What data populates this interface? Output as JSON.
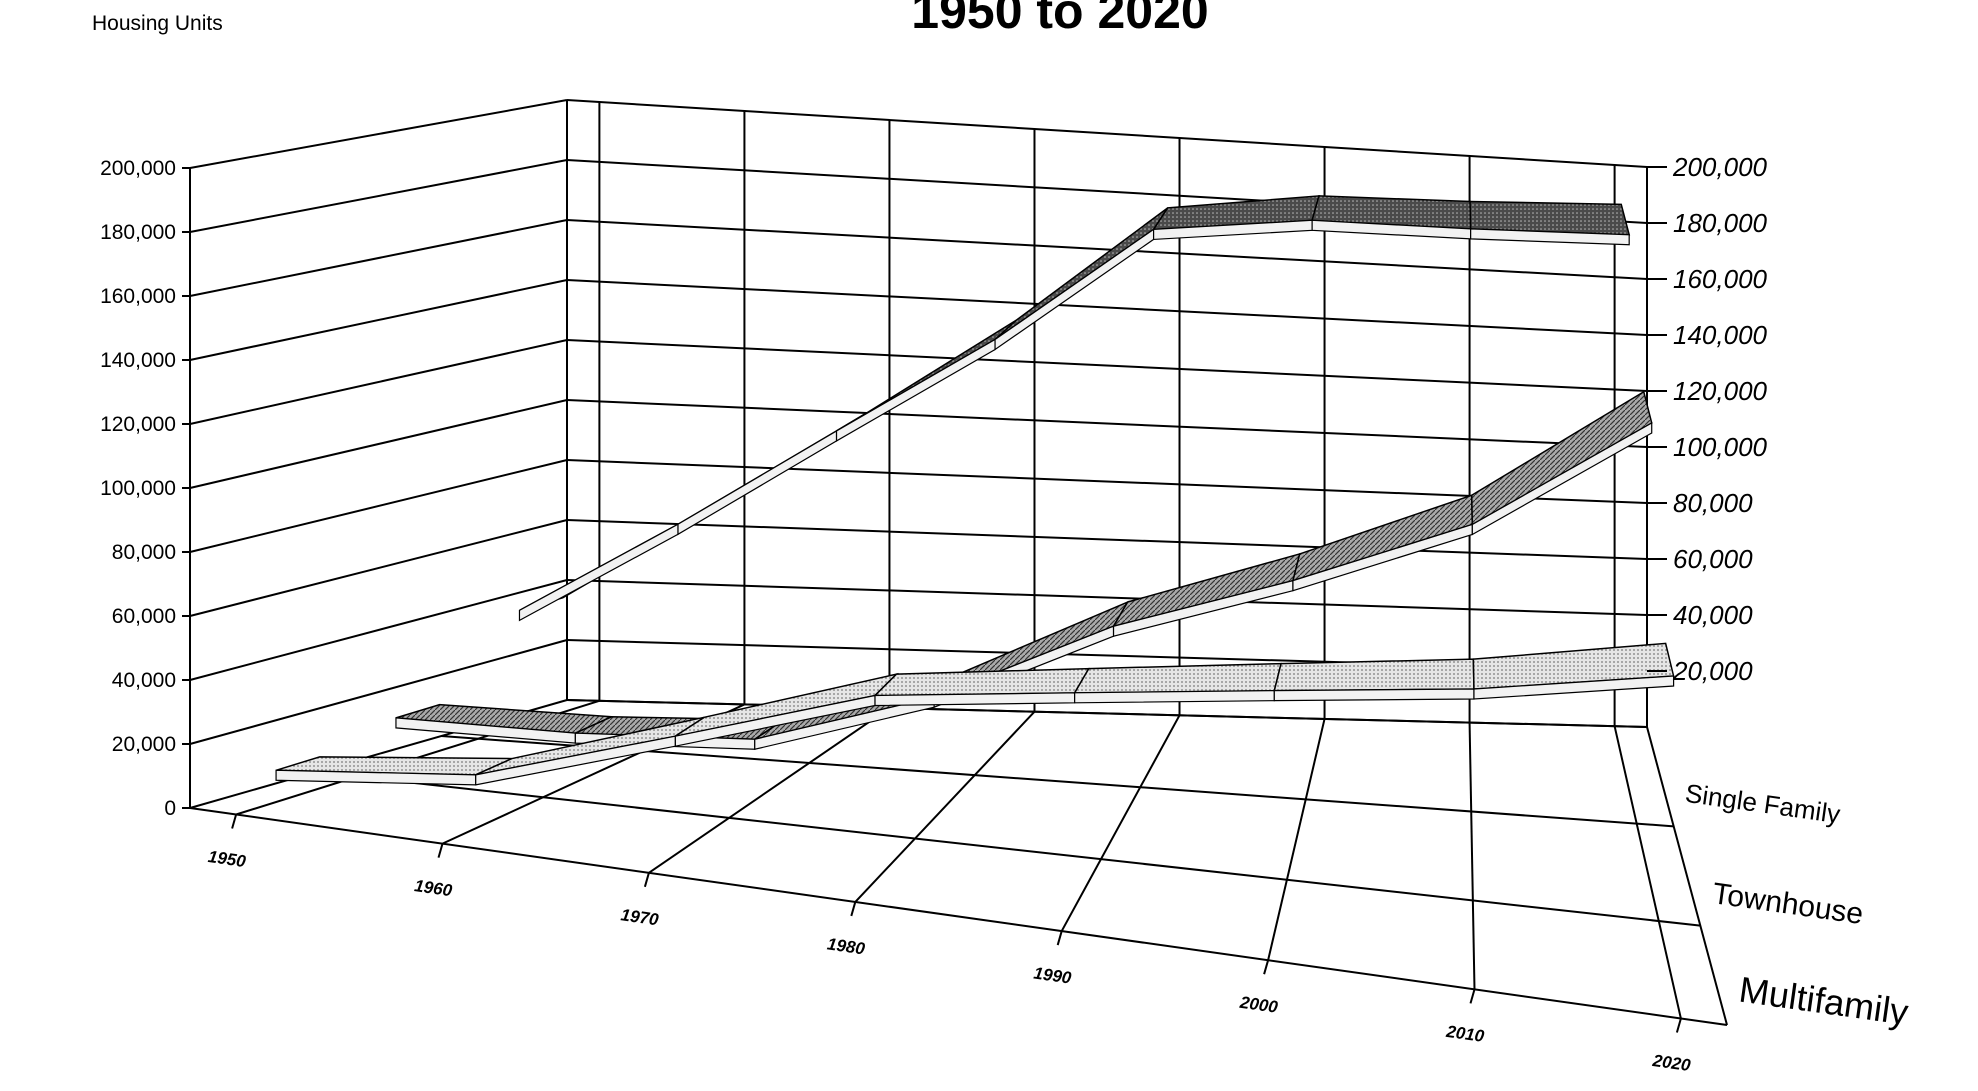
{
  "chart_data": {
    "type": "line",
    "title": "1950 to 2020",
    "ylabel": "Housing Units",
    "ylim": [
      0,
      200000
    ],
    "y_ticks": [
      "0",
      "20,000",
      "40,000",
      "60,000",
      "80,000",
      "100,000",
      "120,000",
      "140,000",
      "160,000",
      "180,000",
      "200,000"
    ],
    "y_ticks_right": [
      "20,000",
      "40,000",
      "60,000",
      "80,000",
      "100,000",
      "120,000",
      "140,000",
      "160,000",
      "180,000",
      "200,000"
    ],
    "categories": [
      "1950",
      "1960",
      "1970",
      "1980",
      "1990",
      "2000",
      "2010",
      "2020"
    ],
    "series": [
      {
        "name": "Single Family",
        "values": [
          38000,
          70000,
          105000,
          140000,
          182000,
          190000,
          192000,
          195000
        ]
      },
      {
        "name": "Townhouse",
        "values": [
          15000,
          16000,
          20000,
          40000,
          70000,
          92000,
          118000,
          160000
        ]
      },
      {
        "name": "Multifamily",
        "values": [
          10000,
          17000,
          38000,
          60000,
          70000,
          80000,
          90000,
          104000
        ]
      }
    ],
    "grid": true,
    "colors": {
      "single_family": "#5a5a5a",
      "townhouse": "#9a9a9a",
      "multifamily": "#d6d6d6"
    }
  }
}
